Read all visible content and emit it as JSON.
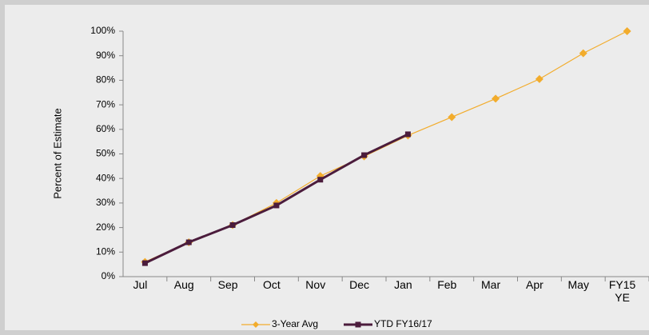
{
  "chart_data": {
    "type": "line",
    "y_label": "Percent of Estimate",
    "categories": [
      "Jul",
      "Aug",
      "Sep",
      "Oct",
      "Nov",
      "Dec",
      "Jan",
      "Feb",
      "Mar",
      "Apr",
      "May",
      "FY15\nYE"
    ],
    "series": [
      {
        "name": "3-Year Avg",
        "color": "#f2ac2c",
        "marker": "diamond",
        "values": [
          6,
          14,
          21,
          30,
          41,
          49,
          57.5,
          65,
          72.5,
          80.5,
          91,
          100
        ]
      },
      {
        "name": "YTD FY16/17",
        "color": "#4b1c3c",
        "marker": "square",
        "values": [
          5.5,
          14,
          21,
          29,
          39.5,
          49.5,
          58,
          null,
          null,
          null,
          null,
          null
        ]
      }
    ],
    "ylim": [
      0,
      100
    ],
    "yticks": [
      {
        "value": 0,
        "label": "0%"
      },
      {
        "value": 10,
        "label": "10%"
      },
      {
        "value": 20,
        "label": "20%"
      },
      {
        "value": 30,
        "label": "30%"
      },
      {
        "value": 40,
        "label": "40%"
      },
      {
        "value": 50,
        "label": "50%"
      },
      {
        "value": 60,
        "label": "60%"
      },
      {
        "value": 70,
        "label": "70%"
      },
      {
        "value": 80,
        "label": "80%"
      },
      {
        "value": 90,
        "label": "90%"
      },
      {
        "value": 100,
        "label": "100%"
      }
    ],
    "grid": false,
    "legend": "bottom"
  }
}
